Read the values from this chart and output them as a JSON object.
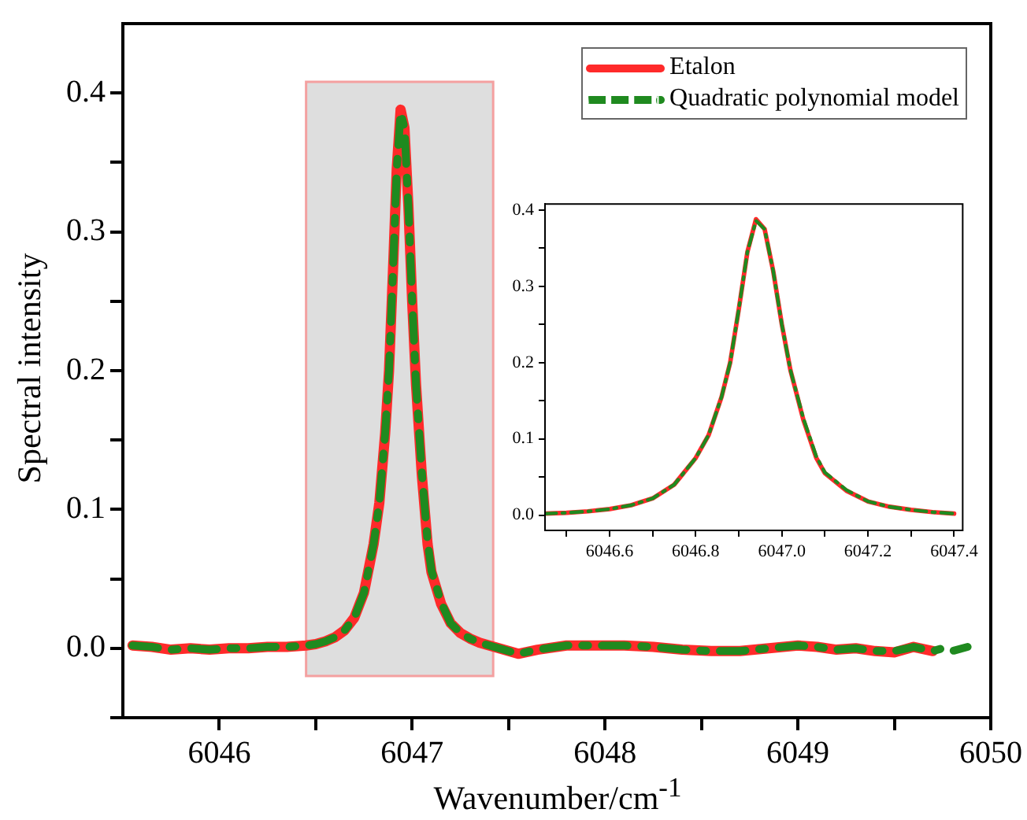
{
  "chart_data": [
    {
      "type": "line",
      "xlabel": "Wavenumber/cm$^{-1}$",
      "ylabel": "Spectral intensity",
      "legend": "top right",
      "xlim": [
        6045.5,
        6050
      ],
      "xticks": [
        6046,
        {
          "value": 6046.5,
          "label": null
        },
        6047,
        {
          "value": 6047.5,
          "label": null
        },
        6048,
        {
          "value": 6048.5,
          "label": null
        },
        6049,
        {
          "value": 6049.5,
          "label": null
        },
        6050
      ],
      "ylim": [
        -0.05,
        0.45
      ],
      "yticks": [
        {
          "value": -0.05,
          "label": null
        },
        {
          "value": 0,
          "label": "0.0"
        },
        {
          "value": 0.05,
          "label": null
        },
        0.1,
        {
          "value": 0.15,
          "label": null
        },
        0.2,
        {
          "value": 0.25,
          "label": null
        },
        0.3,
        {
          "value": 0.35,
          "label": null
        },
        0.4
      ],
      "bands": [
        {
          "axis": "x",
          "from": 6046.45,
          "to": 6047.42,
          "color": "#dedede"
        }
      ],
      "series": [
        {
          "name": "Etalon",
          "color": "#ff2a2a",
          "line_style": "solid",
          "x": [
            6045.55,
            6045.65,
            6045.75,
            6045.85,
            6045.95,
            6046.05,
            6046.15,
            6046.25,
            6046.35,
            6046.45,
            6046.5,
            6046.55,
            6046.6,
            6046.65,
            6046.7,
            6046.75,
            6046.8,
            6046.83,
            6046.86,
            6046.88,
            6046.9,
            6046.92,
            6046.94,
            6046.96,
            6046.98,
            6047.0,
            6047.02,
            6047.05,
            6047.08,
            6047.1,
            6047.15,
            6047.2,
            6047.25,
            6047.3,
            6047.35,
            6047.4,
            6047.5,
            6047.55,
            6047.65,
            6047.8,
            6047.95,
            6048.1,
            6048.25,
            6048.4,
            6048.55,
            6048.7,
            6048.85,
            6049.0,
            6049.1,
            6049.2,
            6049.3,
            6049.4,
            6049.5,
            6049.6,
            6049.7
          ],
          "values": [
            0.002,
            0.001,
            -0.001,
            0,
            -0.001,
            0,
            0,
            0.001,
            0.001,
            0.002,
            0.003,
            0.005,
            0.008,
            0.013,
            0.022,
            0.04,
            0.075,
            0.105,
            0.155,
            0.2,
            0.27,
            0.345,
            0.388,
            0.375,
            0.32,
            0.25,
            0.19,
            0.125,
            0.075,
            0.055,
            0.032,
            0.018,
            0.011,
            0.007,
            0.004,
            0.002,
            -0.002,
            -0.004,
            -0.001,
            0.002,
            0.002,
            0.002,
            0.001,
            -0.001,
            -0.002,
            -0.002,
            0,
            0.002,
            0.001,
            -0.001,
            0,
            -0.002,
            -0.003,
            0.001,
            -0.002
          ]
        },
        {
          "name": "Quadratic polynomial model",
          "color": "#1f8a1f",
          "line_style": "dashed",
          "x": [
            6045.55,
            6045.65,
            6045.75,
            6045.85,
            6045.95,
            6046.05,
            6046.15,
            6046.25,
            6046.35,
            6046.45,
            6046.5,
            6046.55,
            6046.6,
            6046.65,
            6046.7,
            6046.75,
            6046.8,
            6046.83,
            6046.86,
            6046.88,
            6046.9,
            6046.92,
            6046.94,
            6046.96,
            6046.98,
            6047.0,
            6047.02,
            6047.05,
            6047.08,
            6047.1,
            6047.15,
            6047.2,
            6047.25,
            6047.3,
            6047.35,
            6047.4,
            6047.5,
            6047.55,
            6047.65,
            6047.8,
            6047.95,
            6048.1,
            6048.25,
            6048.4,
            6048.55,
            6048.7,
            6048.85,
            6049.0,
            6049.1,
            6049.2,
            6049.3,
            6049.4,
            6049.5,
            6049.6,
            6049.7,
            6049.75,
            6049.8,
            6049.88
          ],
          "values": [
            0.002,
            0.001,
            -0.001,
            0,
            -0.001,
            0,
            0,
            0.001,
            0.001,
            0.002,
            0.003,
            0.005,
            0.008,
            0.013,
            0.022,
            0.04,
            0.075,
            0.105,
            0.155,
            0.2,
            0.27,
            0.345,
            0.386,
            0.375,
            0.32,
            0.25,
            0.19,
            0.127,
            0.077,
            0.056,
            0.033,
            0.018,
            0.011,
            0.007,
            0.004,
            0.002,
            -0.002,
            -0.004,
            -0.001,
            0.002,
            0.002,
            0.002,
            0.001,
            -0.001,
            -0.002,
            -0.002,
            0,
            0.002,
            0.001,
            -0.001,
            0,
            -0.002,
            -0.002,
            0.001,
            -0.002,
            0,
            -0.002,
            0.001
          ]
        }
      ]
    },
    {
      "type": "line",
      "xlim": [
        6046.45,
        6047.42
      ],
      "xticks": [
        {
          "value": 6046.5,
          "label": null
        },
        6046.6,
        {
          "value": 6046.7,
          "label": null
        },
        6046.8,
        {
          "value": 6046.9,
          "label": null
        },
        {
          "value": 6047,
          "label": "6047.0"
        },
        {
          "value": 6047.1,
          "label": null
        },
        6047.2,
        {
          "value": 6047.3,
          "label": null
        },
        6047.4
      ],
      "ylim": [
        -0.02,
        0.408
      ],
      "yticks": [
        {
          "value": 0,
          "label": "0.0"
        },
        {
          "value": 0.05,
          "label": null
        },
        0.1,
        {
          "value": 0.15,
          "label": null
        },
        0.2,
        {
          "value": 0.25,
          "label": null
        },
        0.3,
        {
          "value": 0.35,
          "label": null
        },
        0.4
      ],
      "series": [
        {
          "color": "#ff2a2a",
          "line_style": "solid",
          "x": [
            6046.45,
            6046.5,
            6046.55,
            6046.6,
            6046.65,
            6046.7,
            6046.75,
            6046.8,
            6046.83,
            6046.86,
            6046.88,
            6046.9,
            6046.92,
            6046.94,
            6046.96,
            6046.98,
            6047.0,
            6047.02,
            6047.05,
            6047.08,
            6047.1,
            6047.15,
            6047.2,
            6047.25,
            6047.3,
            6047.35,
            6047.4
          ],
          "values": [
            0.002,
            0.003,
            0.005,
            0.008,
            0.013,
            0.022,
            0.04,
            0.075,
            0.105,
            0.155,
            0.2,
            0.27,
            0.345,
            0.388,
            0.375,
            0.32,
            0.25,
            0.19,
            0.125,
            0.075,
            0.055,
            0.032,
            0.018,
            0.011,
            0.007,
            0.004,
            0.002
          ]
        },
        {
          "color": "#1f8a1f",
          "line_style": "dashed",
          "x": [
            6046.45,
            6046.5,
            6046.55,
            6046.6,
            6046.65,
            6046.7,
            6046.75,
            6046.8,
            6046.83,
            6046.86,
            6046.88,
            6046.9,
            6046.92,
            6046.94,
            6046.96,
            6046.98,
            6047.0,
            6047.02,
            6047.05,
            6047.08,
            6047.1,
            6047.15,
            6047.2,
            6047.25,
            6047.3,
            6047.35,
            6047.4
          ],
          "values": [
            0.002,
            0.003,
            0.005,
            0.008,
            0.013,
            0.022,
            0.04,
            0.075,
            0.105,
            0.155,
            0.2,
            0.27,
            0.345,
            0.386,
            0.375,
            0.32,
            0.25,
            0.19,
            0.127,
            0.077,
            0.056,
            0.033,
            0.018,
            0.011,
            0.007,
            0.004,
            0.002
          ]
        }
      ]
    }
  ]
}
